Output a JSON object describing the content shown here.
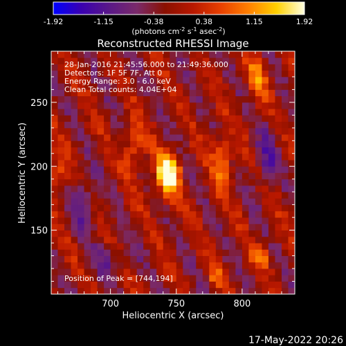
{
  "colorbar": {
    "ticks": [
      "-1.92",
      "-1.15",
      "-0.38",
      "0.38",
      "1.15",
      "1.92"
    ],
    "unit_prefix": "(photons cm",
    "unit_exp1": "-2",
    "unit_mid": " s",
    "unit_exp2": "-1",
    "unit_mid2": " asec",
    "unit_exp3": "-2",
    "unit_suffix": ")",
    "colors": [
      "#0000ff",
      "#3a00b0",
      "#5a1888",
      "#7a2a6a",
      "#8a1000",
      "#b81800",
      "#e84000",
      "#ff8000",
      "#ffd000",
      "#ffffe0"
    ]
  },
  "chart_data": {
    "type": "heatmap",
    "title": "Reconstructed RHESSI Image",
    "xlabel": "Heliocentric X (arcsec)",
    "ylabel": "Heliocentric Y (arcsec)",
    "xlim": [
      655,
      840
    ],
    "ylim": [
      100,
      290
    ],
    "xticks": [
      700,
      750,
      800
    ],
    "yticks": [
      150,
      200,
      250
    ],
    "zlim": [
      -1.92,
      1.92
    ],
    "peak": [
      744,
      194
    ],
    "annotations": {
      "line1": "28-Jan-2016 21:45:56.000 to 21:49:36.000",
      "line2": "Detectors: 1F 5F 7F, Att 0",
      "line3": "Energy Range: 3.0 - 6.0 keV",
      "line4": "Clean    Total counts: 4.04E+04",
      "peak_label": "Position of Peak = [744,194]"
    }
  },
  "footer": {
    "date": "17-May-2022 20:26"
  }
}
